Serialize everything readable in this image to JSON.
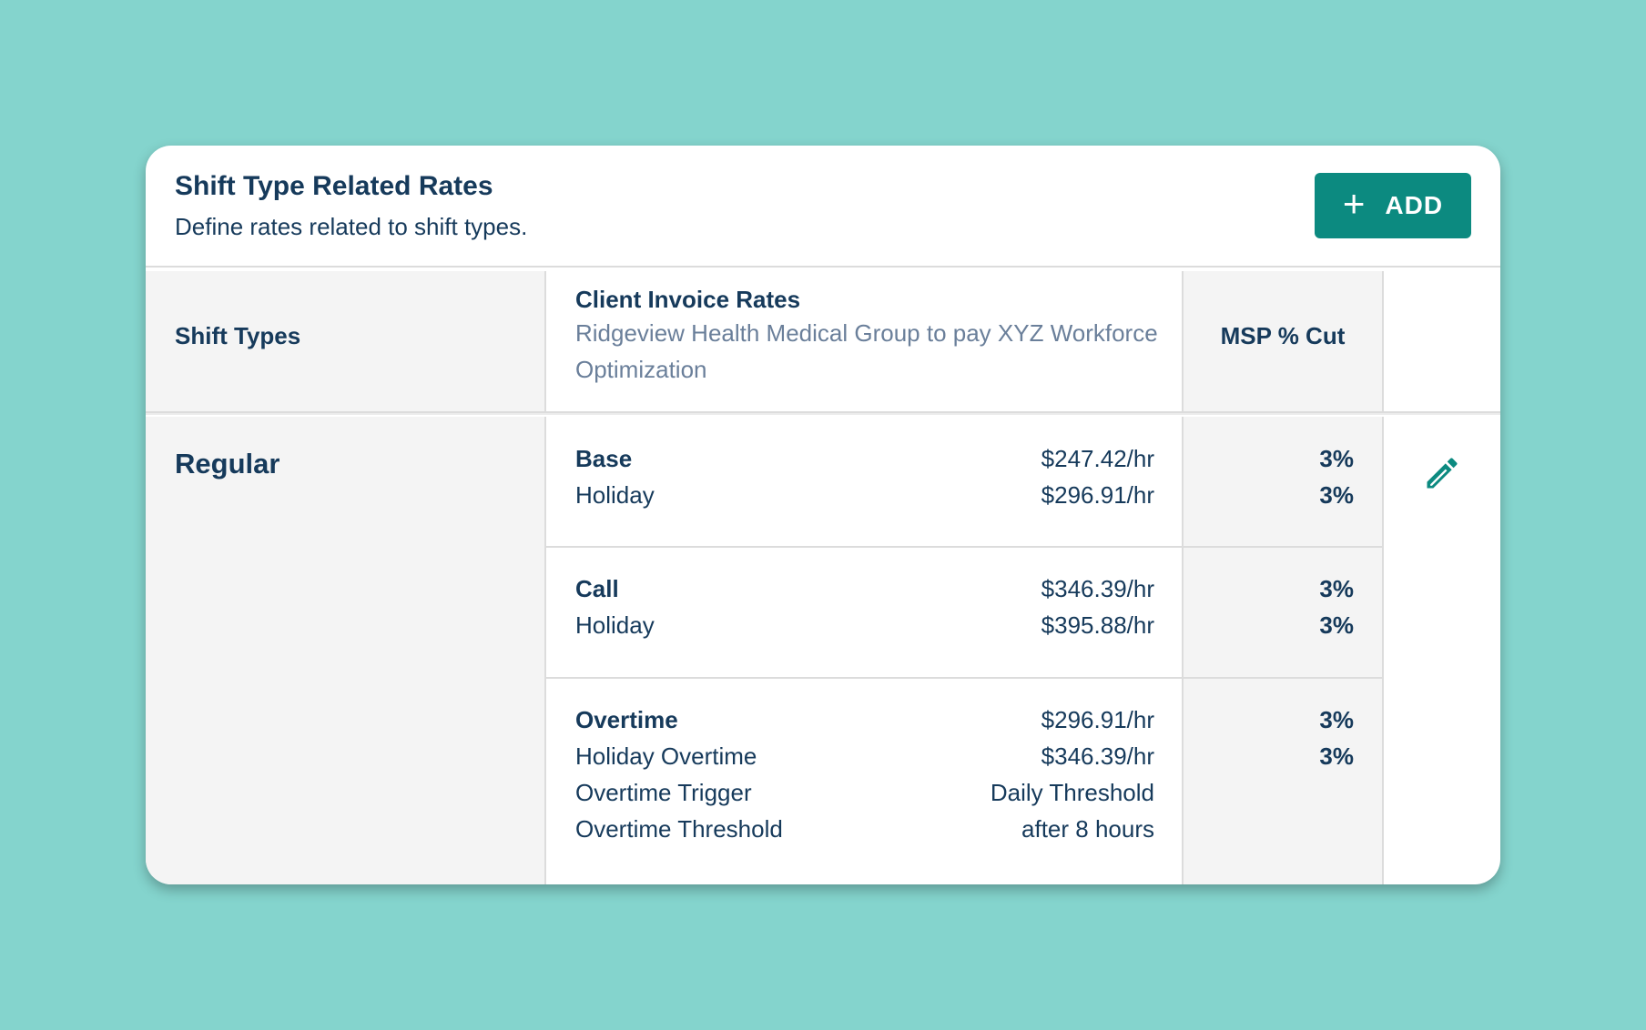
{
  "header": {
    "title": "Shift Type Related Rates",
    "subtitle": "Define rates related to shift types.",
    "add_label": "ADD",
    "add_icon": "plus-icon",
    "accent_color": "#0c8a80"
  },
  "table": {
    "columns": {
      "shift_types": "Shift Types",
      "client_invoice_rates": "Client Invoice Rates",
      "client_invoice_sub": "Ridgeview Health Medical Group to pay XYZ Workforce Optimization",
      "msp_cut": "MSP % Cut"
    },
    "rows": [
      {
        "shift_type": "Regular",
        "edit_icon": "pencil-icon",
        "groups": [
          {
            "lines": [
              {
                "name": "Base",
                "value": "$247.42/hr",
                "msp": "3%"
              },
              {
                "name": "Holiday",
                "value": "$296.91/hr",
                "msp": "3%"
              }
            ]
          },
          {
            "lines": [
              {
                "name": "Call",
                "value": "$346.39/hr",
                "msp": "3%"
              },
              {
                "name": "Holiday",
                "value": "$395.88/hr",
                "msp": "3%"
              }
            ]
          },
          {
            "lines": [
              {
                "name": "Overtime",
                "value": "$296.91/hr",
                "msp": "3%"
              },
              {
                "name": "Holiday Overtime",
                "value": "$346.39/hr",
                "msp": "3%"
              },
              {
                "name": "Overtime Trigger",
                "value": "Daily Threshold"
              },
              {
                "name": "Overtime Threshold",
                "value": "after 8 hours"
              }
            ]
          }
        ]
      }
    ]
  }
}
